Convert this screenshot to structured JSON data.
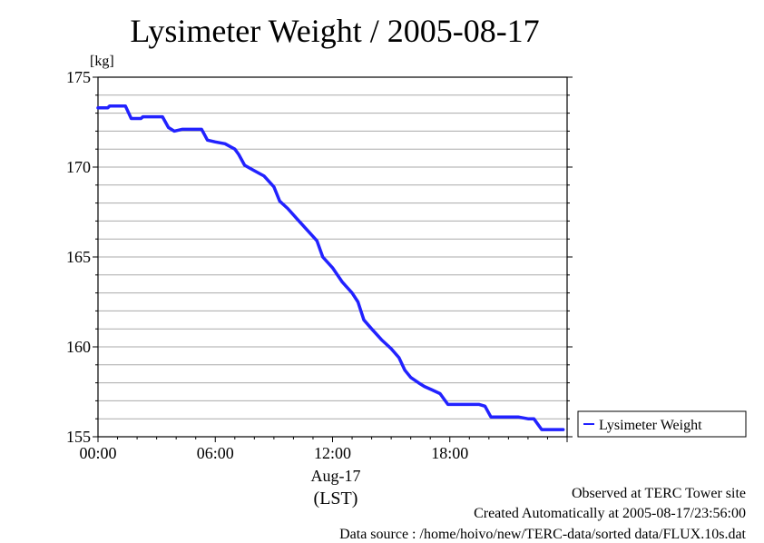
{
  "chart_data": {
    "type": "line",
    "title": "Lysimeter Weight / 2005-08-17",
    "yunit": "[kg]",
    "xlabel_date": "Aug-17",
    "xlabel_tz": "(LST)",
    "xlim": [
      0,
      24
    ],
    "ylim": [
      155,
      175
    ],
    "x_tick_labels": [
      "00:00",
      "06:00",
      "12:00",
      "18:00"
    ],
    "y_ticks": [
      155,
      160,
      165,
      170,
      175
    ],
    "grid": true,
    "legend_position": "right-bottom",
    "series": [
      {
        "name": "Lysimeter Weight",
        "color": "#2222ff",
        "x": [
          0,
          0.5,
          0.6,
          1.4,
          1.7,
          2.2,
          2.3,
          3.3,
          3.6,
          3.9,
          4.3,
          5.3,
          5.6,
          6.0,
          6.5,
          7.0,
          7.2,
          7.5,
          8.0,
          8.5,
          9.0,
          9.3,
          9.7,
          10.2,
          10.7,
          11.2,
          11.5,
          12.0,
          12.5,
          13.0,
          13.3,
          13.6,
          14.0,
          14.5,
          15.0,
          15.4,
          15.7,
          16.0,
          16.4,
          16.7,
          17.1,
          17.5,
          17.9,
          18.2,
          18.5,
          19.0,
          19.5,
          19.8,
          20.1,
          20.5,
          21.0,
          21.5,
          22.0,
          22.3,
          22.7,
          23.2,
          23.8
        ],
        "values": [
          173.3,
          173.3,
          173.4,
          173.4,
          172.7,
          172.7,
          172.8,
          172.8,
          172.2,
          172.0,
          172.1,
          172.1,
          171.5,
          171.4,
          171.3,
          171.0,
          170.7,
          170.1,
          169.8,
          169.5,
          168.9,
          168.1,
          167.7,
          167.1,
          166.5,
          165.9,
          165.0,
          164.4,
          163.6,
          163.0,
          162.5,
          161.5,
          161.0,
          160.4,
          159.9,
          159.4,
          158.7,
          158.3,
          158.0,
          157.8,
          157.6,
          157.4,
          156.8,
          156.8,
          156.8,
          156.8,
          156.8,
          156.7,
          156.1,
          156.1,
          156.1,
          156.1,
          156.0,
          156.0,
          155.4,
          155.4,
          155.4
        ]
      }
    ]
  },
  "footer": {
    "line1": "Observed at TERC Tower site",
    "line2": "Created Automatically at 2005-08-17/23:56:00",
    "line3": "Data source : /home/hoivo/new/TERC-data/sorted  data/FLUX.10s.dat"
  }
}
